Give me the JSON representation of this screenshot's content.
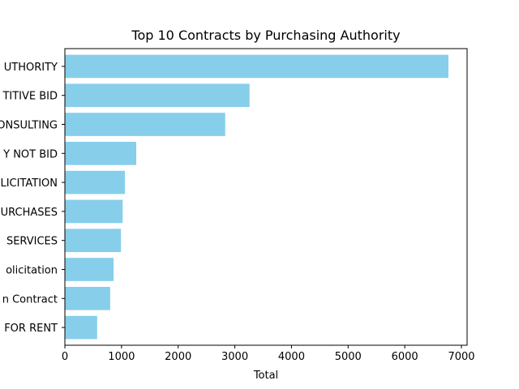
{
  "chart_data": {
    "type": "bar",
    "orientation": "horizontal",
    "title": "Top 10 Contracts by Purchasing Authority",
    "xlabel": "Total",
    "ylabel": "",
    "xlim": [
      0,
      7100
    ],
    "xticks": [
      0,
      1000,
      2000,
      3000,
      4000,
      5000,
      6000,
      7000
    ],
    "xtick_labels": [
      "0",
      "1000",
      "2000",
      "3000",
      "4000",
      "5000",
      "6000",
      "7000"
    ],
    "grid": false,
    "bar_color": "#87ceeb",
    "categories": [
      "UTHORITY",
      "TITIVE BID",
      "ONSULTING",
      "Y NOT BID",
      "LICITATION",
      "URCHASES",
      "SERVICES",
      "olicitation",
      "n Contract",
      "FOR RENT"
    ],
    "values": [
      6770,
      3260,
      2830,
      1260,
      1060,
      1020,
      990,
      860,
      800,
      570
    ]
  }
}
